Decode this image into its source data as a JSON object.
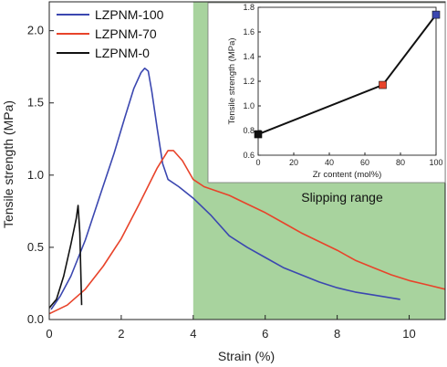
{
  "chart_data": [
    {
      "type": "line",
      "xlabel": "Strain (%)",
      "ylabel": "Tensile strength (MPa)",
      "xlim": [
        0,
        11
      ],
      "ylim": [
        0,
        2.2
      ],
      "x_ticks": [
        0,
        2,
        4,
        6,
        8,
        10
      ],
      "y_ticks": [
        0.0,
        0.5,
        1.0,
        1.5,
        2.0
      ],
      "y_tick_labels": [
        "0.0",
        "0.5",
        "1.0",
        "1.5",
        "2.0"
      ],
      "legend_position": "top-left",
      "annotations": [
        {
          "text": "Slipping range",
          "region_x": [
            4,
            11
          ],
          "color": "#a8d39e"
        }
      ],
      "series": [
        {
          "name": "LZPNM-100",
          "color": "#3b47b0",
          "points": [
            [
              0.05,
              0.07
            ],
            [
              0.3,
              0.16
            ],
            [
              0.6,
              0.3
            ],
            [
              1.0,
              0.55
            ],
            [
              1.4,
              0.85
            ],
            [
              1.8,
              1.15
            ],
            [
              2.1,
              1.4
            ],
            [
              2.35,
              1.6
            ],
            [
              2.55,
              1.71
            ],
            [
              2.65,
              1.74
            ],
            [
              2.75,
              1.72
            ],
            [
              2.85,
              1.58
            ],
            [
              3.0,
              1.32
            ],
            [
              3.15,
              1.08
            ],
            [
              3.3,
              0.97
            ],
            [
              3.6,
              0.92
            ],
            [
              4.0,
              0.84
            ],
            [
              4.5,
              0.72
            ],
            [
              5.0,
              0.58
            ],
            [
              5.5,
              0.5
            ],
            [
              6.0,
              0.43
            ],
            [
              6.5,
              0.36
            ],
            [
              7.0,
              0.31
            ],
            [
              7.5,
              0.26
            ],
            [
              8.0,
              0.22
            ],
            [
              8.5,
              0.19
            ],
            [
              9.0,
              0.17
            ],
            [
              9.5,
              0.15
            ],
            [
              9.75,
              0.14
            ]
          ]
        },
        {
          "name": "LZPNM-70",
          "color": "#e8432a",
          "points": [
            [
              0.0,
              0.04
            ],
            [
              0.5,
              0.1
            ],
            [
              1.0,
              0.21
            ],
            [
              1.5,
              0.37
            ],
            [
              2.0,
              0.56
            ],
            [
              2.5,
              0.8
            ],
            [
              3.0,
              1.05
            ],
            [
              3.3,
              1.17
            ],
            [
              3.45,
              1.17
            ],
            [
              3.7,
              1.1
            ],
            [
              4.0,
              0.97
            ],
            [
              4.3,
              0.92
            ],
            [
              5.0,
              0.86
            ],
            [
              5.5,
              0.8
            ],
            [
              6.0,
              0.74
            ],
            [
              6.5,
              0.67
            ],
            [
              7.0,
              0.6
            ],
            [
              7.5,
              0.54
            ],
            [
              8.0,
              0.48
            ],
            [
              8.5,
              0.41
            ],
            [
              9.0,
              0.36
            ],
            [
              9.5,
              0.31
            ],
            [
              10.0,
              0.27
            ],
            [
              10.5,
              0.24
            ],
            [
              11.0,
              0.21
            ]
          ]
        },
        {
          "name": "LZPNM-0",
          "color": "#111111",
          "points": [
            [
              0.0,
              0.08
            ],
            [
              0.2,
              0.14
            ],
            [
              0.4,
              0.3
            ],
            [
              0.6,
              0.52
            ],
            [
              0.75,
              0.7
            ],
            [
              0.8,
              0.79
            ],
            [
              0.85,
              0.6
            ],
            [
              0.88,
              0.3
            ],
            [
              0.9,
              0.1
            ]
          ]
        }
      ]
    },
    {
      "type": "line",
      "inset": true,
      "xlabel": "Zr content (mol%)",
      "ylabel": "Tensile strength (MPa)",
      "xlim": [
        0,
        100
      ],
      "ylim": [
        0.6,
        1.8
      ],
      "x_ticks": [
        0,
        20,
        40,
        60,
        80,
        100
      ],
      "y_ticks": [
        0.6,
        0.8,
        1.0,
        1.2,
        1.4,
        1.6,
        1.8
      ],
      "y_tick_labels": [
        "0.6",
        "0.8",
        "1.0",
        "1.2",
        "1.4",
        "1.6",
        "1.8"
      ],
      "series": [
        {
          "x": [
            0,
            70,
            100
          ],
          "values": [
            0.77,
            1.17,
            1.74
          ],
          "line_color": "#111111",
          "marker_colors": [
            "#111111",
            "#e8432a",
            "#3b47b0"
          ]
        }
      ]
    }
  ]
}
